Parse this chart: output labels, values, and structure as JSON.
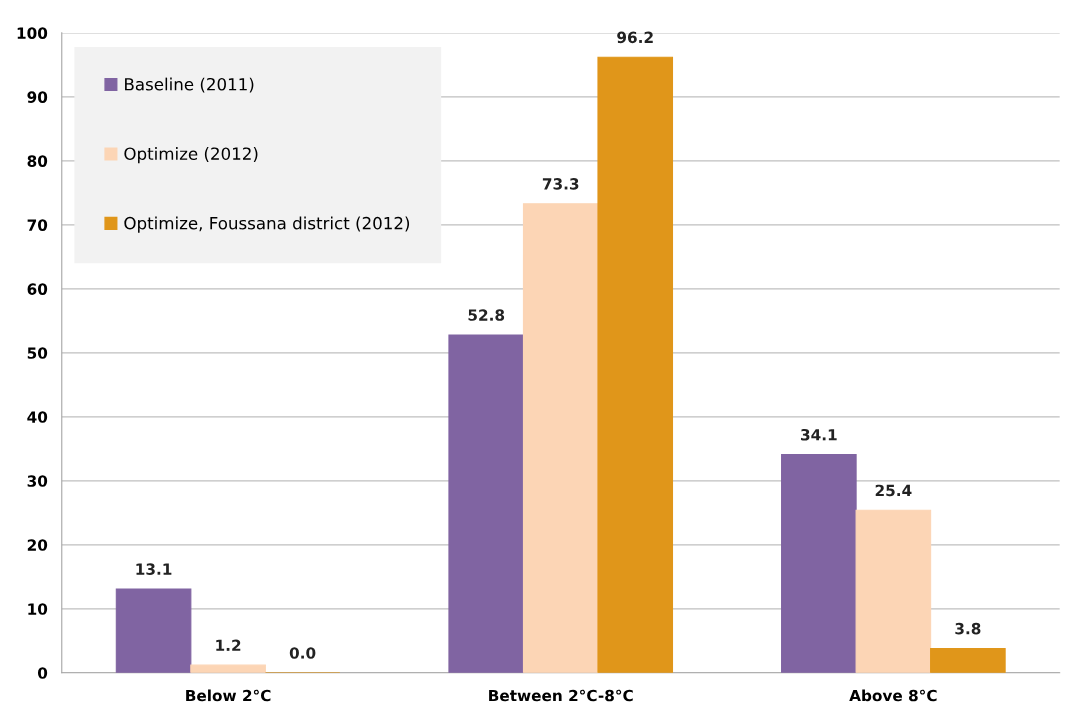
{
  "chart_data": {
    "type": "bar",
    "categories": [
      "Below 2°C",
      "Between 2°C-8°C",
      "Above 8°C"
    ],
    "series": [
      {
        "name": "Baseline (2011)",
        "color": "#8064a2",
        "values": [
          13.1,
          52.8,
          34.1
        ],
        "value_labels": [
          "13.1",
          "52.8",
          "34.1"
        ]
      },
      {
        "name": "Optimize (2012)",
        "color": "#fcd5b5",
        "values": [
          1.2,
          73.3,
          25.4
        ],
        "value_labels": [
          "1.2",
          "73.3",
          "25.4"
        ]
      },
      {
        "name": "Optimize, Foussana district (2012)",
        "color": "#e0961a",
        "values": [
          0,
          96.2,
          3.8
        ],
        "value_labels": [
          "0.0",
          "96.2",
          "3.8"
        ]
      }
    ],
    "ylim": [
      0,
      100
    ],
    "yticks": [
      0,
      10,
      20,
      30,
      40,
      50,
      60,
      70,
      80,
      90,
      100
    ],
    "grid": "y",
    "legend": "top left"
  }
}
